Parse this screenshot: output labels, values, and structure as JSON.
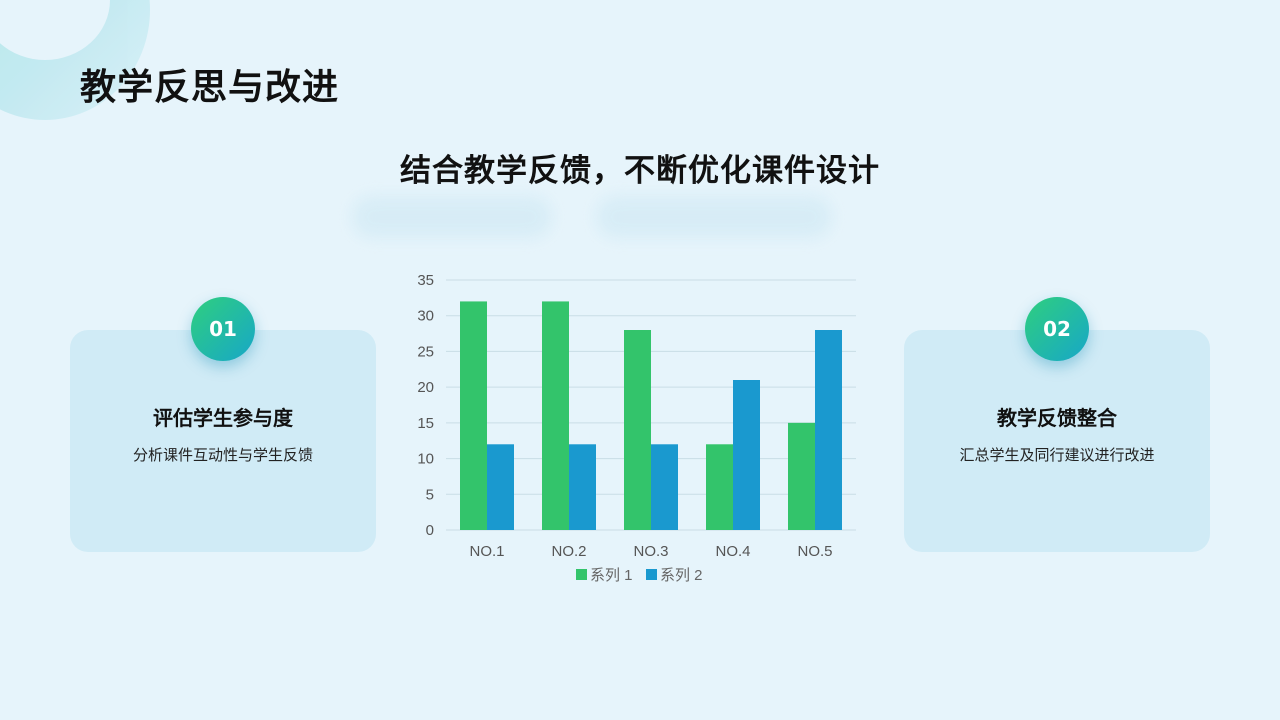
{
  "slide": {
    "title": "教学反思与改进",
    "subtitle": "结合教学反馈，不断优化课件设计"
  },
  "cards": [
    {
      "number": "01",
      "title": "评估学生参与度",
      "desc": "分析课件互动性与学生反馈"
    },
    {
      "number": "02",
      "title": "教学反馈整合",
      "desc": "汇总学生及同行建议进行改进"
    }
  ],
  "colors": {
    "background": "#e6f4fb",
    "series1": "#33c46b",
    "series2": "#1a99cf",
    "card": "#d0ebf6",
    "badge_start": "#2fcf7e",
    "badge_end": "#17a7c8"
  },
  "chart_data": {
    "type": "bar",
    "categories": [
      "NO.1",
      "NO.2",
      "NO.3",
      "NO.4",
      "NO.5"
    ],
    "series": [
      {
        "name": "系列 1",
        "values": [
          32,
          32,
          28,
          12,
          15
        ]
      },
      {
        "name": "系列 2",
        "values": [
          12,
          12,
          12,
          21,
          28
        ]
      }
    ],
    "ylim": [
      0,
      35
    ],
    "yticks": [
      "0",
      "5",
      "10",
      "15",
      "20",
      "25",
      "30",
      "35"
    ],
    "grid": true,
    "legend": "bottom"
  }
}
